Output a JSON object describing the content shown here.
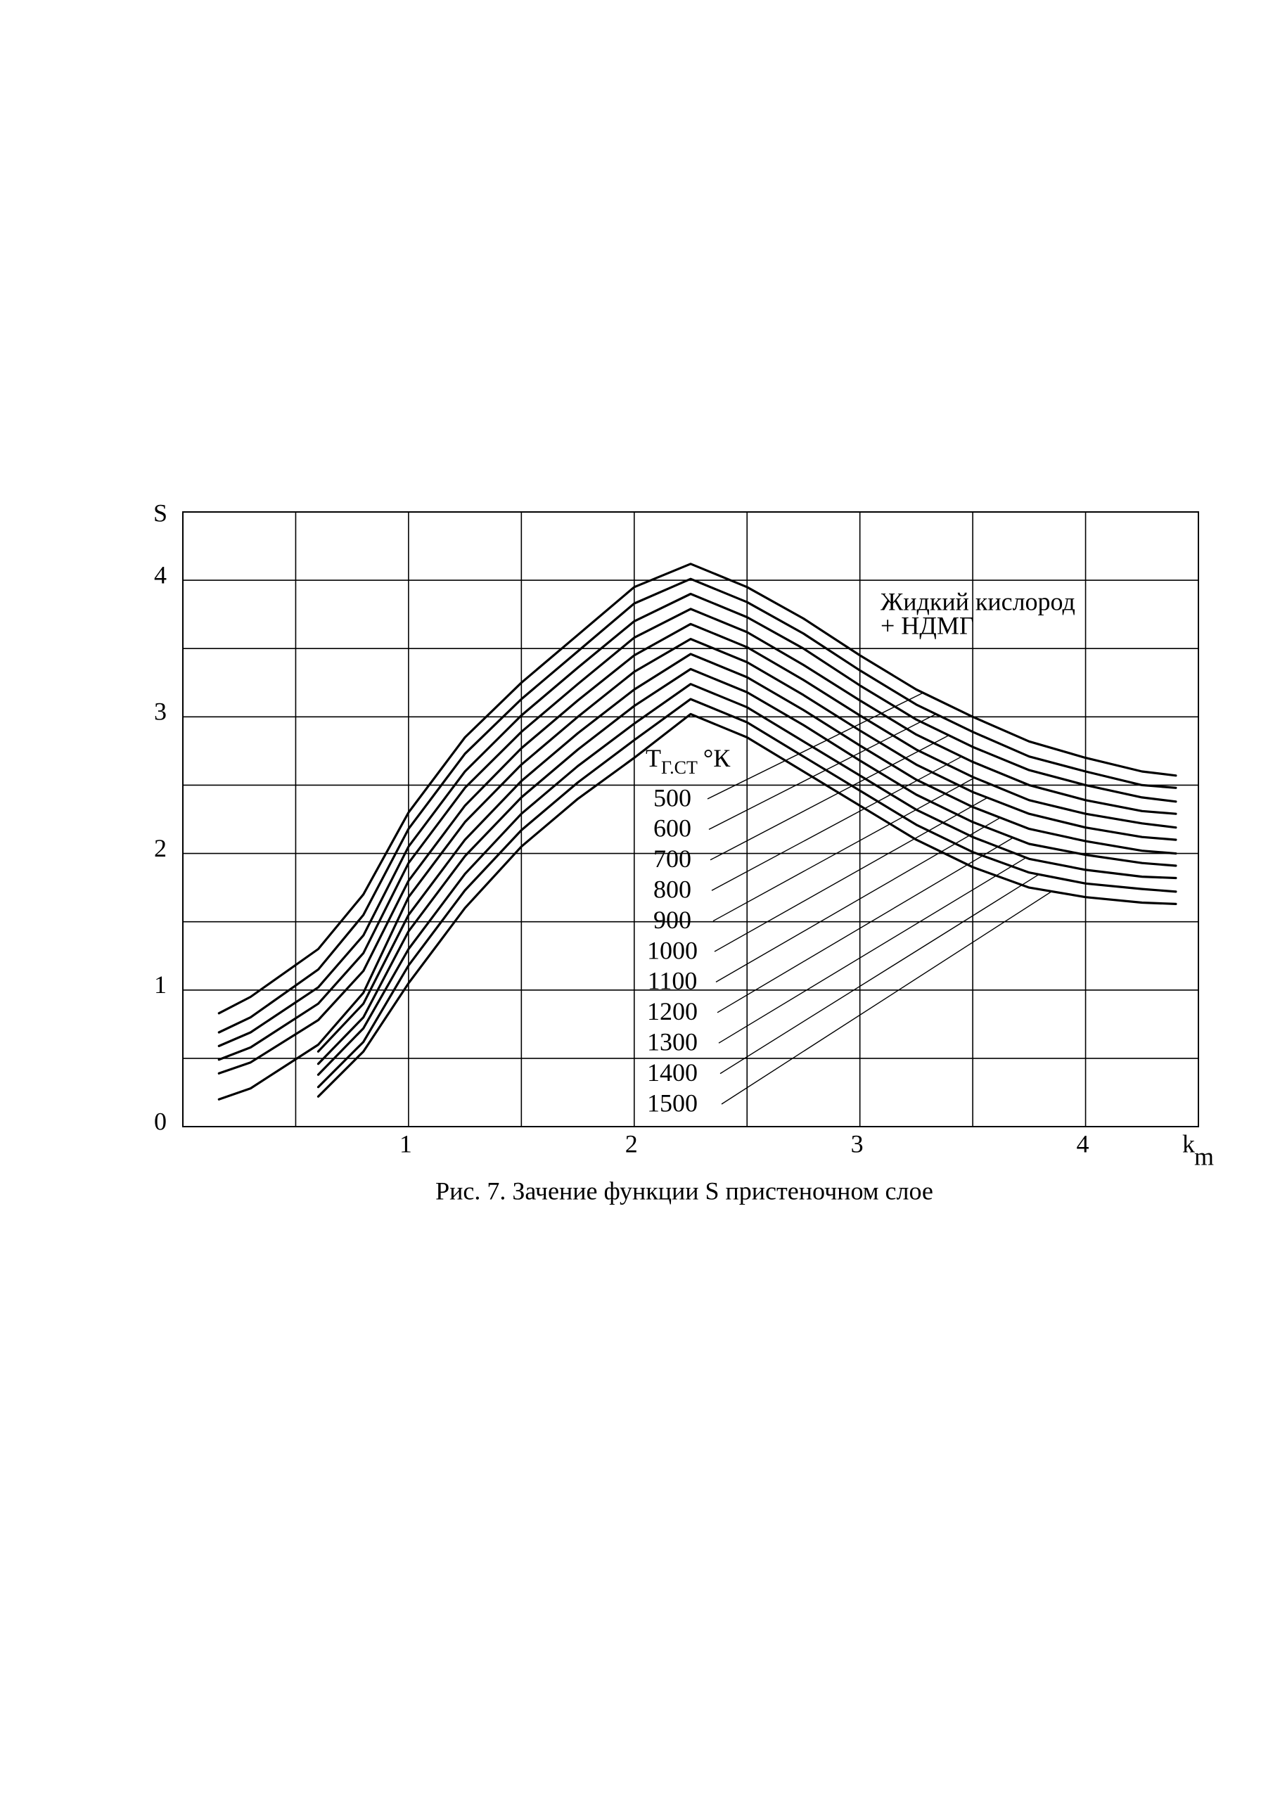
{
  "chart_data": {
    "type": "line",
    "title": "Рис. 7. Зачение функции S пристеночном слое",
    "ylabel": "S",
    "xlabel": "k",
    "xlabel_sub": "m",
    "legend_title": "T",
    "legend_title_sub": "Г.СТ",
    "legend_title_unit": "°К",
    "annotation": [
      "Жидкий кислород",
      "+ НДМГ"
    ],
    "xlim": [
      0,
      4.5
    ],
    "ylim": [
      0,
      4.5
    ],
    "xticks": [
      1,
      2,
      3,
      4
    ],
    "yticks": [
      0,
      1,
      2,
      3,
      4
    ],
    "xgrid": [
      0.5,
      1,
      1.5,
      2,
      2.5,
      3,
      3.5,
      4
    ],
    "ygrid": [
      0.5,
      1,
      1.5,
      2,
      2.5,
      3,
      3.5,
      4
    ],
    "grid": true,
    "color": "#000000",
    "x": [
      0.16,
      0.3,
      0.6,
      0.8,
      1.0,
      1.25,
      1.5,
      1.75,
      2.0,
      2.25,
      2.5,
      2.75,
      3.0,
      3.25,
      3.5,
      3.75,
      4.0,
      4.25,
      4.4
    ],
    "series": [
      {
        "name": "500",
        "values": [
          0.83,
          0.95,
          1.3,
          1.7,
          2.3,
          2.85,
          3.25,
          3.6,
          3.95,
          4.12,
          3.95,
          3.72,
          3.45,
          3.2,
          3.0,
          2.82,
          2.7,
          2.6,
          2.57
        ]
      },
      {
        "name": "600",
        "values": [
          0.69,
          0.8,
          1.15,
          1.55,
          2.18,
          2.73,
          3.13,
          3.48,
          3.83,
          4.01,
          3.84,
          3.61,
          3.34,
          3.09,
          2.89,
          2.71,
          2.6,
          2.5,
          2.48
        ]
      },
      {
        "name": "700",
        "values": [
          0.59,
          0.69,
          1.02,
          1.4,
          2.05,
          2.6,
          3.01,
          3.36,
          3.7,
          3.9,
          3.73,
          3.5,
          3.23,
          2.98,
          2.78,
          2.61,
          2.5,
          2.41,
          2.38
        ]
      },
      {
        "name": "800",
        "values": [
          0.49,
          0.58,
          0.9,
          1.27,
          1.93,
          2.48,
          2.89,
          3.24,
          3.58,
          3.79,
          3.62,
          3.38,
          3.12,
          2.87,
          2.67,
          2.5,
          2.39,
          2.31,
          2.29
        ]
      },
      {
        "name": "900",
        "values": [
          0.39,
          0.47,
          0.78,
          1.14,
          1.8,
          2.35,
          2.77,
          3.12,
          3.45,
          3.68,
          3.51,
          3.27,
          3.01,
          2.76,
          2.56,
          2.39,
          2.29,
          2.22,
          2.19
        ]
      },
      {
        "name": "1000",
        "values": [
          0.2,
          0.28,
          0.6,
          0.98,
          1.68,
          2.23,
          2.65,
          3.0,
          3.33,
          3.57,
          3.4,
          3.16,
          2.9,
          2.65,
          2.45,
          2.29,
          2.19,
          2.12,
          2.1
        ]
      },
      {
        "name": "1100",
        "values": [
          null,
          null,
          0.55,
          0.9,
          1.55,
          2.1,
          2.53,
          2.88,
          3.2,
          3.46,
          3.29,
          3.05,
          2.79,
          2.54,
          2.34,
          2.18,
          2.09,
          2.02,
          2.0
        ]
      },
      {
        "name": "1200",
        "values": [
          null,
          null,
          0.46,
          0.8,
          1.43,
          1.98,
          2.41,
          2.76,
          3.08,
          3.35,
          3.18,
          2.94,
          2.68,
          2.43,
          2.23,
          2.07,
          1.99,
          1.93,
          1.91
        ]
      },
      {
        "name": "1300",
        "values": [
          null,
          null,
          0.38,
          0.72,
          1.3,
          1.85,
          2.29,
          2.64,
          2.95,
          3.24,
          3.07,
          2.82,
          2.57,
          2.32,
          2.12,
          1.96,
          1.88,
          1.83,
          1.82
        ]
      },
      {
        "name": "1400",
        "values": [
          null,
          null,
          0.29,
          0.62,
          1.18,
          1.73,
          2.17,
          2.52,
          2.83,
          3.13,
          2.96,
          2.71,
          2.46,
          2.21,
          2.01,
          1.86,
          1.78,
          1.74,
          1.72
        ]
      },
      {
        "name": "1500",
        "values": [
          null,
          null,
          0.22,
          0.55,
          1.05,
          1.6,
          2.05,
          2.4,
          2.7,
          3.02,
          2.85,
          2.6,
          2.35,
          2.1,
          1.9,
          1.75,
          1.68,
          1.64,
          1.63
        ]
      }
    ]
  }
}
